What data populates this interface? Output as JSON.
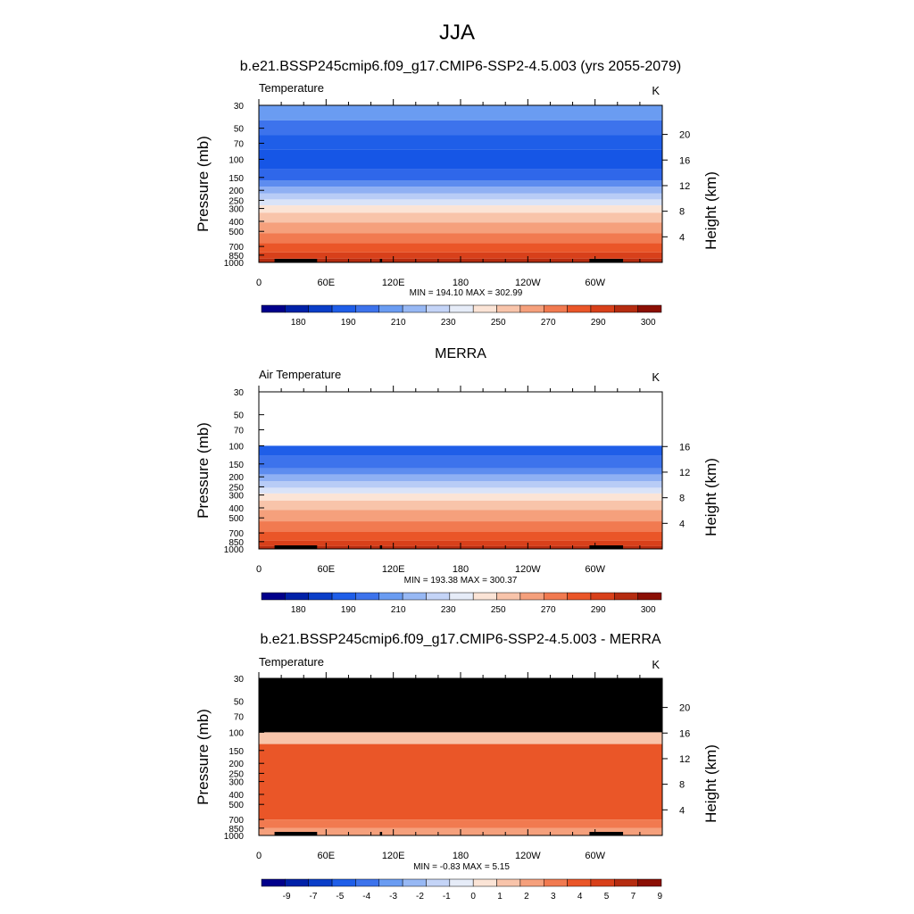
{
  "main_title": "JJA",
  "panels": [
    {
      "title": "b.e21.BSSP245cmip6.f09_g17.CMIP6-SSP2-4.5.003 (yrs 2055-2079)",
      "left_string": "Temperature",
      "right_string": "K",
      "stats": "MIN = 194.10  MAX = 302.99",
      "has_height_20": true,
      "blank_above": "",
      "fills": [
        {
          "p_top": 30,
          "p_bot": 42,
          "color": "#6a9cf2"
        },
        {
          "p_top": 42,
          "p_bot": 58,
          "color": "#3d73ec"
        },
        {
          "p_top": 58,
          "p_bot": 80,
          "color": "#1f5ee8"
        },
        {
          "p_top": 80,
          "p_bot": 125,
          "color": "#1656e6"
        },
        {
          "p_top": 125,
          "p_bot": 160,
          "color": "#2f67ea"
        },
        {
          "p_top": 160,
          "p_bot": 185,
          "color": "#5d8cef"
        },
        {
          "p_top": 185,
          "p_bot": 215,
          "color": "#8fb0f3"
        },
        {
          "p_top": 215,
          "p_bot": 245,
          "color": "#b8ccf6"
        },
        {
          "p_top": 245,
          "p_bot": 280,
          "color": "#d9e3f8"
        },
        {
          "p_top": 280,
          "p_bot": 330,
          "color": "#fbe4d6"
        },
        {
          "p_top": 330,
          "p_bot": 410,
          "color": "#f8c4aa"
        },
        {
          "p_top": 410,
          "p_bot": 520,
          "color": "#f5a07c"
        },
        {
          "p_top": 520,
          "p_bot": 650,
          "color": "#f17a50"
        },
        {
          "p_top": 650,
          "p_bot": 800,
          "color": "#ea5628"
        },
        {
          "p_top": 800,
          "p_bot": 920,
          "color": "#d8401a"
        },
        {
          "p_top": 920,
          "p_bot": 1000,
          "color": "#b52c10"
        }
      ],
      "colorbar": {
        "colors": [
          "#01008b",
          "#0021a8",
          "#0a3ec8",
          "#1f5ee8",
          "#3d73ec",
          "#6a9cf2",
          "#97b8f4",
          "#c4d4f7",
          "#e6ecf8",
          "#fbe4d6",
          "#f8c4aa",
          "#f5a07c",
          "#f17a50",
          "#ea5628",
          "#d8401a",
          "#b52c10",
          "#8b0f04"
        ],
        "labels": [
          "180",
          "190",
          "210",
          "230",
          "250",
          "270",
          "290",
          "300"
        ]
      }
    },
    {
      "title": "MERRA",
      "left_string": "Air Temperature",
      "right_string": "K",
      "stats": "MIN = 193.38  MAX = 300.37",
      "has_height_20": false,
      "fills": [
        {
          "p_top": 100,
          "p_bot": 125,
          "color": "#1f5ee8"
        },
        {
          "p_top": 125,
          "p_bot": 165,
          "color": "#3d73ec"
        },
        {
          "p_top": 165,
          "p_bot": 190,
          "color": "#5d8cef"
        },
        {
          "p_top": 190,
          "p_bot": 220,
          "color": "#8fb0f3"
        },
        {
          "p_top": 220,
          "p_bot": 255,
          "color": "#b8ccf6"
        },
        {
          "p_top": 255,
          "p_bot": 290,
          "color": "#d9e3f8"
        },
        {
          "p_top": 290,
          "p_bot": 340,
          "color": "#fbe4d6"
        },
        {
          "p_top": 340,
          "p_bot": 420,
          "color": "#f8c4aa"
        },
        {
          "p_top": 420,
          "p_bot": 540,
          "color": "#f5a07c"
        },
        {
          "p_top": 540,
          "p_bot": 680,
          "color": "#f17a50"
        },
        {
          "p_top": 680,
          "p_bot": 830,
          "color": "#ea5628"
        },
        {
          "p_top": 830,
          "p_bot": 940,
          "color": "#d8401a"
        },
        {
          "p_top": 940,
          "p_bot": 1000,
          "color": "#b52c10"
        }
      ],
      "colorbar": {
        "colors": [
          "#01008b",
          "#0021a8",
          "#0a3ec8",
          "#1f5ee8",
          "#3d73ec",
          "#6a9cf2",
          "#97b8f4",
          "#c4d4f7",
          "#e6ecf8",
          "#fbe4d6",
          "#f8c4aa",
          "#f5a07c",
          "#f17a50",
          "#ea5628",
          "#d8401a",
          "#b52c10",
          "#8b0f04"
        ],
        "labels": [
          "180",
          "190",
          "210",
          "230",
          "250",
          "270",
          "290",
          "300"
        ]
      }
    },
    {
      "title": "b.e21.BSSP245cmip6.f09_g17.CMIP6-SSP2-4.5.003 - MERRA",
      "left_string": "Temperature",
      "right_string": "K",
      "stats": "MIN =  -0.83  MAX =   5.15",
      "has_height_20": true,
      "fills": [
        {
          "p_top": 30,
          "p_bot": 100,
          "color": "#000000"
        },
        {
          "p_top": 100,
          "p_bot": 130,
          "color": "#f8c4aa"
        },
        {
          "p_top": 130,
          "p_bot": 700,
          "color": "#ea5628"
        },
        {
          "p_top": 700,
          "p_bot": 850,
          "color": "#f17a50"
        },
        {
          "p_top": 850,
          "p_bot": 1000,
          "color": "#f5a07c"
        }
      ],
      "colorbar": {
        "colors": [
          "#01008b",
          "#0021a8",
          "#0a3ec8",
          "#1f5ee8",
          "#3d73ec",
          "#6a9cf2",
          "#97b8f4",
          "#c4d4f7",
          "#e6ecf8",
          "#fbe4d6",
          "#f8c4aa",
          "#f5a07c",
          "#f17a50",
          "#ea5628",
          "#d8401a",
          "#b52c10",
          "#8b0f04"
        ],
        "labels": [
          "-9",
          "-7",
          "-5",
          "-4",
          "-3",
          "-2",
          "-1",
          "0",
          "1",
          "2",
          "3",
          "4",
          "5",
          "7",
          "9"
        ]
      }
    }
  ],
  "axes": {
    "xlabel_left": "Pressure (mb)",
    "ylabel_right": "Height (km)",
    "pressure_ticks": [
      30,
      50,
      70,
      100,
      150,
      200,
      250,
      300,
      400,
      500,
      700,
      850,
      1000
    ],
    "pressure_labels": [
      "30",
      "50",
      "70",
      "100",
      "150",
      "200",
      "250",
      "300",
      "400",
      "500",
      "700",
      "850",
      "1000"
    ],
    "lon_ticks": [
      0,
      60,
      120,
      180,
      240,
      300
    ],
    "lon_labels": [
      "0",
      "60E",
      "120E",
      "180",
      "120W",
      "60W"
    ],
    "height_ticks": [
      4,
      8,
      12,
      16,
      20
    ],
    "height_labels": [
      "4",
      "8",
      "12",
      "16",
      "20"
    ]
  },
  "chart_data": [
    {
      "type": "heatmap",
      "title": "b.e21.BSSP245cmip6.f09_g17.CMIP6-SSP2-4.5.003 (yrs 2055-2079)",
      "variable": "Temperature",
      "units": "K",
      "x": "longitude 0-360",
      "y": "pressure (mb) 30-1000, log scale",
      "min": 194.1,
      "max": 302.99,
      "colorbar_levels": [
        180,
        190,
        210,
        230,
        250,
        270,
        290,
        300
      ]
    },
    {
      "type": "heatmap",
      "title": "MERRA",
      "variable": "Air Temperature",
      "units": "K",
      "min": 193.38,
      "max": 300.37,
      "colorbar_levels": [
        180,
        190,
        210,
        230,
        250,
        270,
        290,
        300
      ]
    },
    {
      "type": "heatmap",
      "title": "b.e21.BSSP245cmip6.f09_g17.CMIP6-SSP2-4.5.003 - MERRA",
      "variable": "Temperature",
      "units": "K",
      "min": -0.83,
      "max": 5.15,
      "colorbar_levels": [
        -9,
        -7,
        -5,
        -4,
        -3,
        -2,
        -1,
        0,
        1,
        2,
        3,
        4,
        5,
        7,
        9
      ]
    }
  ]
}
